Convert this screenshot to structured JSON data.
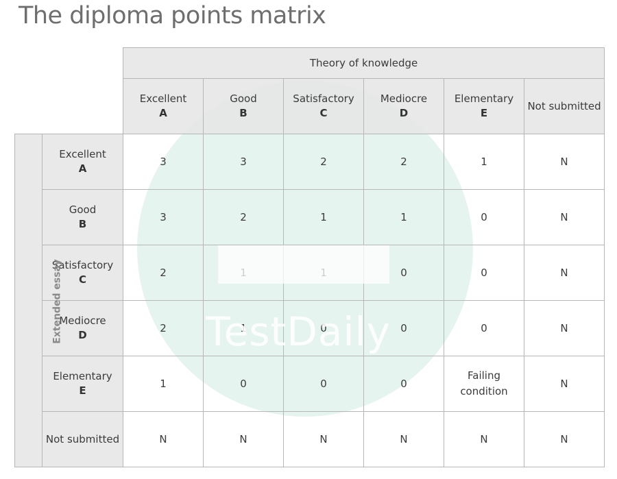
{
  "title": "The diploma points matrix",
  "watermark": "TestDaily",
  "tok_label": "Theory of knowledge",
  "ee_label": "Extended essay",
  "columns": [
    {
      "name": "Excellent",
      "letter": "A"
    },
    {
      "name": "Good",
      "letter": "B"
    },
    {
      "name": "Satisfactory",
      "letter": "C"
    },
    {
      "name": "Mediocre",
      "letter": "D"
    },
    {
      "name": "Elementary",
      "letter": "E"
    },
    {
      "name": "Not submitted",
      "letter": ""
    }
  ],
  "rows": [
    {
      "name": "Excellent",
      "letter": "A",
      "values": [
        "3",
        "3",
        "2",
        "2",
        "1",
        "N"
      ]
    },
    {
      "name": "Good",
      "letter": "B",
      "values": [
        "3",
        "2",
        "1",
        "1",
        "0",
        "N"
      ]
    },
    {
      "name": "Satisfactory",
      "letter": "C",
      "values": [
        "2",
        "1",
        "1",
        "0",
        "0",
        "N"
      ]
    },
    {
      "name": "Mediocre",
      "letter": "D",
      "values": [
        "2",
        "1",
        "0",
        "0",
        "0",
        "N"
      ]
    },
    {
      "name": "Elementary",
      "letter": "E",
      "values": [
        "1",
        "0",
        "0",
        "0",
        "Failing condition",
        "N"
      ]
    },
    {
      "name": "Not submitted",
      "letter": "",
      "values": [
        "N",
        "N",
        "N",
        "N",
        "N",
        "N"
      ]
    }
  ]
}
